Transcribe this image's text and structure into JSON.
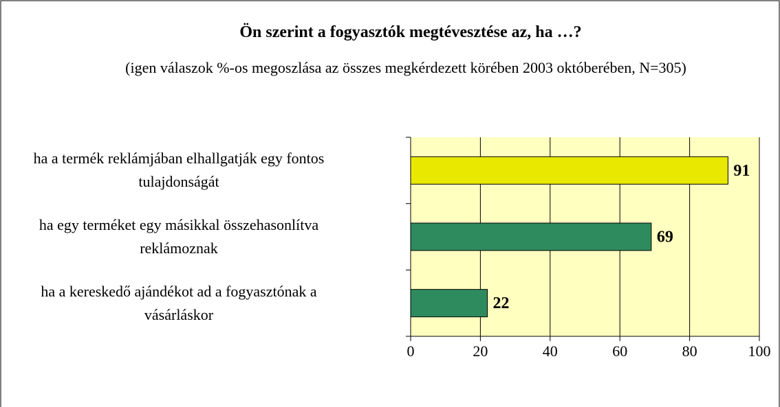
{
  "chart_data": {
    "type": "bar",
    "orientation": "horizontal",
    "title": "Ön szerint a fogyasztók megtévesztése az, ha …?",
    "subtitle": "(igen válaszok %-os megoszlása az összes megkérdezett körében 2003 októberében, N=305)",
    "categories": [
      "ha a termék reklámjában elhallgatják egy fontos tulajdonságát",
      "ha egy terméket egy másikkal összehasonlítva reklámoznak",
      "ha a kereskedő ajándékot ad a fogyasztónak a vásárláskor"
    ],
    "values": [
      91,
      69,
      22
    ],
    "colors": [
      "#e8e800",
      "#2e8b5e",
      "#2e8b5e"
    ],
    "xlim": [
      0,
      100
    ],
    "xticks": [
      0,
      20,
      40,
      60,
      80,
      100
    ],
    "grid": true
  }
}
